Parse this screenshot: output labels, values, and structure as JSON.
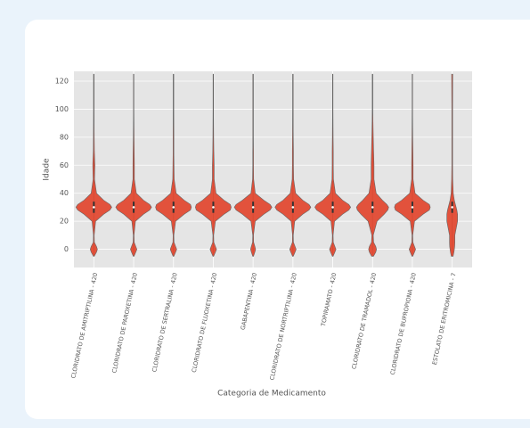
{
  "chart_data": {
    "type": "violin",
    "y_label": "Idade",
    "x_label": "Categoria de Medicamento",
    "categories": [
      "CLORIDRATO DE AMITRIPTILINA - 420",
      "CLORIDRATO DE PAROXETINA - 420",
      "CLORIDRATO DE SERTRALINA - 420",
      "CLORIDRATO DE FLUOXETINA - 420",
      "GABAPENTINA - 420",
      "CLORIDRATO DE NORTRIPTILINA - 420",
      "TOPIRAMATO - 420",
      "CLORIDRATO DE TRAMADOL - 420",
      "CLORIDRATO DE BUPROPIONA - 420",
      "ESTOLATO DE ERITROMICINA - 7"
    ],
    "density_y": [
      -5,
      -2,
      0,
      2,
      5,
      10,
      20,
      25,
      28,
      30,
      32,
      35,
      40,
      50,
      60,
      70,
      80,
      100,
      125
    ],
    "densities": [
      [
        0.02,
        0.15,
        0.2,
        0.15,
        0.03,
        0.02,
        0.1,
        0.55,
        0.9,
        1,
        0.9,
        0.55,
        0.15,
        0.04,
        0.06,
        0.03,
        0.02,
        0.01,
        0.01
      ],
      [
        0.02,
        0.12,
        0.18,
        0.12,
        0.03,
        0.02,
        0.1,
        0.55,
        0.9,
        1,
        0.9,
        0.55,
        0.15,
        0.04,
        0.04,
        0.03,
        0.02,
        0.01,
        0.01
      ],
      [
        0.02,
        0.12,
        0.18,
        0.12,
        0.03,
        0.02,
        0.12,
        0.6,
        0.95,
        1,
        0.95,
        0.6,
        0.15,
        0.04,
        0.03,
        0.02,
        0.02,
        0.01,
        0.01
      ],
      [
        0.02,
        0.12,
        0.18,
        0.12,
        0.03,
        0.02,
        0.12,
        0.6,
        0.95,
        1,
        0.95,
        0.6,
        0.15,
        0.05,
        0.05,
        0.03,
        0.02,
        0.01,
        0.01
      ],
      [
        0.02,
        0.1,
        0.14,
        0.1,
        0.03,
        0.02,
        0.12,
        0.6,
        0.95,
        1.05,
        0.95,
        0.6,
        0.12,
        0.03,
        0.02,
        0.02,
        0.01,
        0.01,
        0.01
      ],
      [
        0.02,
        0.12,
        0.18,
        0.12,
        0.03,
        0.02,
        0.1,
        0.55,
        0.9,
        1,
        0.9,
        0.55,
        0.15,
        0.04,
        0.03,
        0.03,
        0.02,
        0.01,
        0.01
      ],
      [
        0.02,
        0.12,
        0.18,
        0.12,
        0.03,
        0.02,
        0.1,
        0.55,
        0.9,
        1,
        0.9,
        0.55,
        0.15,
        0.04,
        0.03,
        0.03,
        0.02,
        0.01,
        0.01
      ],
      [
        0.05,
        0.18,
        0.22,
        0.18,
        0.06,
        0.04,
        0.25,
        0.65,
        0.85,
        0.9,
        0.8,
        0.55,
        0.2,
        0.08,
        0.08,
        0.06,
        0.04,
        0.01,
        0.01
      ],
      [
        0.02,
        0.12,
        0.18,
        0.12,
        0.03,
        0.02,
        0.12,
        0.6,
        0.95,
        1,
        0.95,
        0.6,
        0.15,
        0.04,
        0.04,
        0.03,
        0.02,
        0.01,
        0.01
      ],
      [
        0.05,
        0.1,
        0.12,
        0.14,
        0.15,
        0.15,
        0.3,
        0.3,
        0.26,
        0.22,
        0.18,
        0.12,
        0.06,
        0.03,
        0.02,
        0.02,
        0.02,
        0.02,
        0.03
      ]
    ],
    "medians": [
      30,
      30,
      30,
      30,
      30,
      30,
      30,
      30,
      30,
      30
    ],
    "color": "#e24a33",
    "ylim": [
      -13,
      127
    ],
    "yticks": [
      0,
      20,
      40,
      60,
      80,
      100,
      120
    ],
    "grid": true
  }
}
